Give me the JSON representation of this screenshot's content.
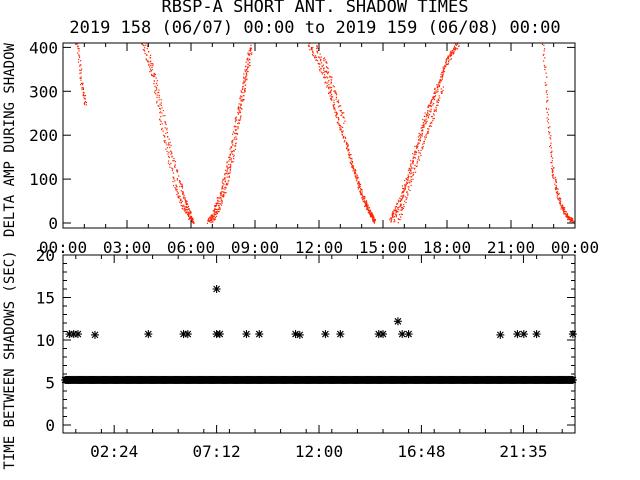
{
  "title_line1": "RBSP-A SHORT ANT. SHADOW TIMES",
  "title_line2": "2019 158 (06/07) 00:00 to 2019 159 (06/08) 00:00",
  "chart_data": [
    {
      "type": "scatter",
      "ylabel": "DELTA AMP DURING SHADOW",
      "xlim": [
        0,
        24
      ],
      "ylim": [
        0,
        410
      ],
      "x_tick_labels": [
        "00:00",
        "03:00",
        "06:00",
        "09:00",
        "12:00",
        "15:00",
        "18:00",
        "21:00",
        "00:00"
      ],
      "y_tick_labels": [
        "0",
        "100",
        "200",
        "300",
        "400"
      ],
      "point_color": "#ff2200",
      "traces": [
        {
          "x": [
            0.55,
            0.65,
            0.85,
            1.05
          ],
          "y": [
            410,
            420,
            320,
            270
          ]
        },
        {
          "x": [
            3.7,
            4.2,
            4.7,
            5.2,
            5.6,
            5.9,
            6.1
          ],
          "y": [
            410,
            330,
            200,
            90,
            40,
            15,
            5
          ]
        },
        {
          "x": [
            3.9,
            4.4,
            4.9,
            5.4,
            5.75,
            6.0
          ],
          "y": [
            410,
            310,
            190,
            100,
            50,
            15
          ]
        },
        {
          "x": [
            6.8,
            7.0,
            7.3,
            7.6,
            7.9,
            8.2,
            8.5,
            8.8
          ],
          "y": [
            5,
            20,
            60,
            110,
            180,
            260,
            340,
            410
          ]
        },
        {
          "x": [
            6.95,
            7.3,
            7.6,
            7.9,
            8.2,
            8.5,
            8.8
          ],
          "y": [
            5,
            35,
            80,
            145,
            230,
            310,
            400
          ]
        },
        {
          "x": [
            11.5,
            12.0,
            12.6,
            13.2,
            13.7,
            14.1,
            14.4,
            14.6
          ],
          "y": [
            410,
            360,
            280,
            190,
            110,
            50,
            20,
            5
          ]
        },
        {
          "x": [
            11.8,
            12.3,
            12.9,
            13.5,
            13.9,
            14.3,
            14.6
          ],
          "y": [
            410,
            340,
            230,
            140,
            80,
            30,
            5
          ]
        },
        {
          "x": [
            12.2,
            12.7,
            13.2
          ],
          "y": [
            380,
            300,
            230
          ]
        },
        {
          "x": [
            15.3,
            15.6,
            16.0,
            16.5,
            17.0,
            17.5,
            18.0,
            18.5
          ],
          "y": [
            5,
            35,
            90,
            170,
            250,
            310,
            370,
            410
          ]
        },
        {
          "x": [
            15.5,
            15.9,
            16.4,
            16.9,
            17.4,
            17.9,
            18.4
          ],
          "y": [
            5,
            60,
            140,
            220,
            290,
            360,
            410
          ]
        },
        {
          "x": [
            15.7,
            16.2,
            16.8,
            17.3,
            17.8
          ],
          "y": [
            5,
            80,
            170,
            240,
            310
          ]
        },
        {
          "x": [
            22.5,
            22.7,
            22.9,
            23.1,
            23.3,
            23.5,
            23.7,
            23.9
          ],
          "y": [
            410,
            250,
            130,
            80,
            45,
            25,
            10,
            5
          ]
        }
      ]
    },
    {
      "type": "scatter",
      "ylabel": "TIME BETWEEN SHADOWS (SEC)",
      "xlim": [
        0,
        24
      ],
      "ylim": [
        0,
        20
      ],
      "x_tick_labels": [
        "02:24",
        "07:12",
        "12:00",
        "16:48",
        "21:35"
      ],
      "x_tick_values": [
        2.4,
        7.2,
        12.0,
        16.8,
        21.583
      ],
      "y_tick_labels": [
        "0",
        "5",
        "10",
        "15",
        "20"
      ],
      "marker": "*",
      "baseline_value": 5.3,
      "baseline_x_range": [
        0.1,
        23.95
      ],
      "points_x": [
        0.3,
        0.5,
        0.7,
        1.5,
        4.0,
        5.65,
        5.85,
        7.2,
        7.35,
        8.6,
        9.2,
        10.9,
        11.1,
        12.3,
        13.0,
        14.8,
        15.0,
        15.9,
        16.2,
        20.5,
        21.3,
        21.6,
        22.2,
        23.9,
        7.2,
        15.7
      ],
      "points_y": [
        10.7,
        10.7,
        10.7,
        10.6,
        10.7,
        10.7,
        10.7,
        10.7,
        10.7,
        10.7,
        10.7,
        10.7,
        10.6,
        10.7,
        10.7,
        10.7,
        10.7,
        10.7,
        10.7,
        10.6,
        10.7,
        10.7,
        10.7,
        10.7,
        16.0,
        12.2
      ]
    }
  ]
}
